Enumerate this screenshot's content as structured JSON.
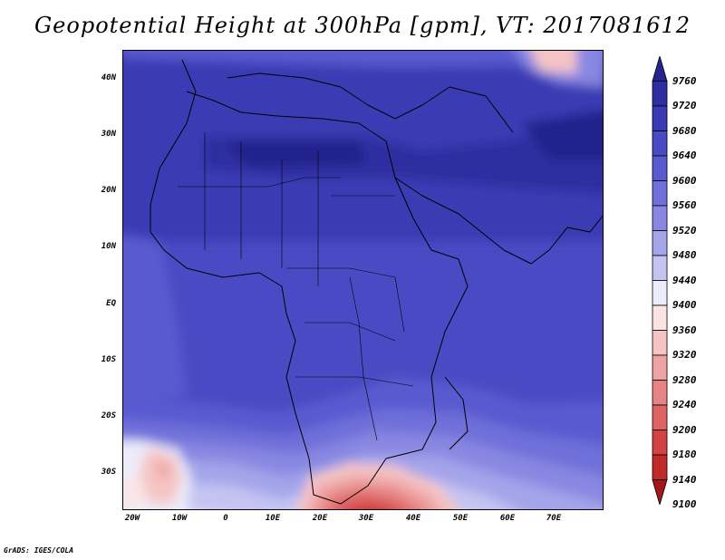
{
  "title": "Geopotential Height at 300hPa [gpm], VT: 2017081612",
  "footer": "GrADS: IGES/COLA",
  "map": {
    "variable": "Geopotential Height",
    "level": "300hPa",
    "units": "gpm",
    "valid_time": "2017081612",
    "lon_range": [
      -23,
      80
    ],
    "lat_range": [
      -37,
      45
    ],
    "lat_labels": [
      "40N",
      "30N",
      "20N",
      "10N",
      "EQ",
      "10S",
      "20S",
      "30S"
    ],
    "lon_labels": [
      "20W",
      "10W",
      "0",
      "10E",
      "20E",
      "30E",
      "40E",
      "50E",
      "60E",
      "70E"
    ]
  },
  "colorbar": {
    "levels": [
      "9760",
      "9720",
      "9680",
      "9640",
      "9600",
      "9560",
      "9520",
      "9480",
      "9440",
      "9400",
      "9360",
      "9320",
      "9280",
      "9240",
      "9200",
      "9180",
      "9140",
      "9100"
    ],
    "colors": [
      "#24248c",
      "#2e2ea0",
      "#3a3ab4",
      "#4a4ac4",
      "#5a5ad0",
      "#7070da",
      "#8888e2",
      "#a4a4ea",
      "#c4c4f2",
      "#ececfa",
      "#fce4e4",
      "#f6c4c4",
      "#eea4a4",
      "#e68484",
      "#de6464",
      "#d24444",
      "#c02a2a",
      "#a01818"
    ]
  }
}
